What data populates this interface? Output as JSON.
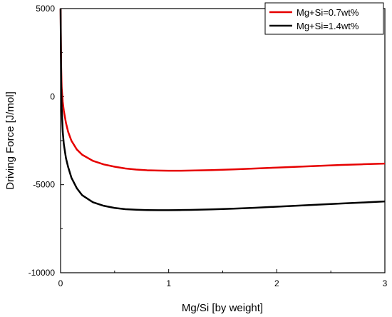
{
  "chart_data": {
    "type": "line",
    "title": "",
    "xlabel": "Mg/Si [by weight]",
    "ylabel": "Driving Force [J/mol]",
    "xlim": [
      0,
      3
    ],
    "ylim": [
      -10000,
      5000
    ],
    "xticks": [
      0,
      1,
      2,
      3
    ],
    "xtick_labels": [
      "0",
      "1",
      "2",
      "3"
    ],
    "yticks": [
      5000,
      0,
      -5000,
      -10000
    ],
    "ytick_labels": [
      "5000",
      "0",
      "-5000",
      "-10000"
    ],
    "grid": false,
    "legend_position": "top-right",
    "series": [
      {
        "name": "Mg+Si=0.7wt%",
        "color": "#e60000",
        "x": [
          0.0,
          0.005,
          0.01,
          0.02,
          0.03,
          0.05,
          0.07,
          0.1,
          0.15,
          0.2,
          0.3,
          0.4,
          0.5,
          0.6,
          0.7,
          0.8,
          0.9,
          1.0,
          1.1,
          1.2,
          1.4,
          1.6,
          1.8,
          2.0,
          2.2,
          2.4,
          2.6,
          2.8,
          3.0
        ],
        "y": [
          5000,
          1800,
          500,
          -300,
          -800,
          -1500,
          -2000,
          -2500,
          -3000,
          -3300,
          -3650,
          -3850,
          -3980,
          -4080,
          -4140,
          -4180,
          -4200,
          -4210,
          -4210,
          -4200,
          -4170,
          -4130,
          -4080,
          -4030,
          -3980,
          -3930,
          -3880,
          -3840,
          -3800
        ]
      },
      {
        "name": "Mg+Si=1.4wt%",
        "color": "#000000",
        "x": [
          0.0,
          0.005,
          0.01,
          0.02,
          0.03,
          0.05,
          0.07,
          0.1,
          0.15,
          0.2,
          0.3,
          0.4,
          0.5,
          0.6,
          0.7,
          0.8,
          0.9,
          1.0,
          1.1,
          1.2,
          1.4,
          1.6,
          1.8,
          2.0,
          2.2,
          2.4,
          2.6,
          2.8,
          3.0
        ],
        "y": [
          5000,
          900,
          -600,
          -2000,
          -2700,
          -3500,
          -4000,
          -4600,
          -5200,
          -5600,
          -6000,
          -6200,
          -6320,
          -6390,
          -6420,
          -6440,
          -6450,
          -6450,
          -6440,
          -6430,
          -6400,
          -6360,
          -6310,
          -6250,
          -6190,
          -6130,
          -6070,
          -6010,
          -5950
        ]
      }
    ]
  }
}
